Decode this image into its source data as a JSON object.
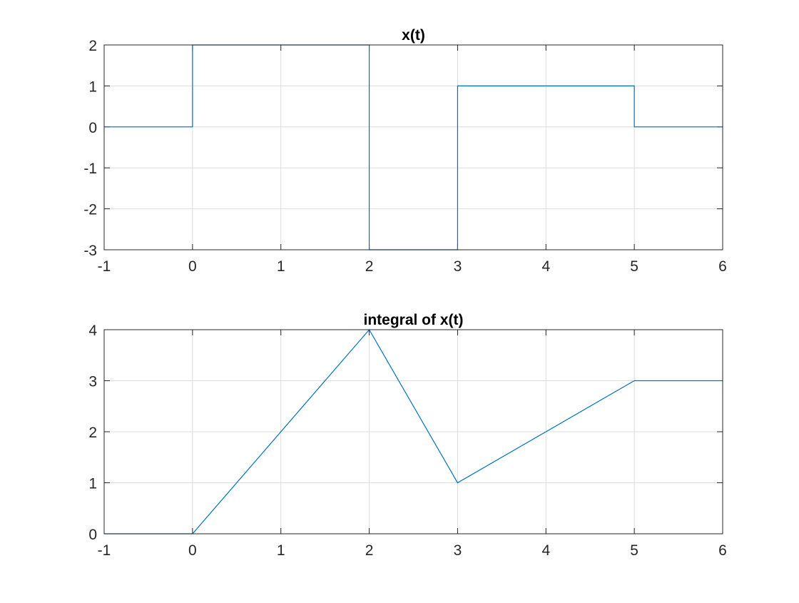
{
  "chart_data": [
    {
      "type": "line",
      "title": "x(t)",
      "xlabel": "",
      "ylabel": "",
      "xlim": [
        -1,
        6
      ],
      "ylim": [
        -3,
        2
      ],
      "xticks": [
        -1,
        0,
        1,
        2,
        3,
        4,
        5,
        6
      ],
      "yticks": [
        -3,
        -2,
        -1,
        0,
        1,
        2
      ],
      "grid": true,
      "series": [
        {
          "color": "#0072BD",
          "x": [
            -1,
            0,
            0,
            2,
            2,
            3,
            3,
            5,
            5,
            6
          ],
          "y": [
            0,
            0,
            2,
            2,
            -3,
            -3,
            1,
            1,
            0,
            0
          ]
        }
      ]
    },
    {
      "type": "line",
      "title": "integral of x(t)",
      "xlabel": "",
      "ylabel": "",
      "xlim": [
        -1,
        6
      ],
      "ylim": [
        0,
        4
      ],
      "xticks": [
        -1,
        0,
        1,
        2,
        3,
        4,
        5,
        6
      ],
      "yticks": [
        0,
        1,
        2,
        3,
        4
      ],
      "grid": true,
      "series": [
        {
          "color": "#0072BD",
          "x": [
            -1,
            0,
            2,
            3,
            5,
            6
          ],
          "y": [
            0,
            0,
            4,
            1,
            3,
            3
          ]
        }
      ]
    }
  ]
}
